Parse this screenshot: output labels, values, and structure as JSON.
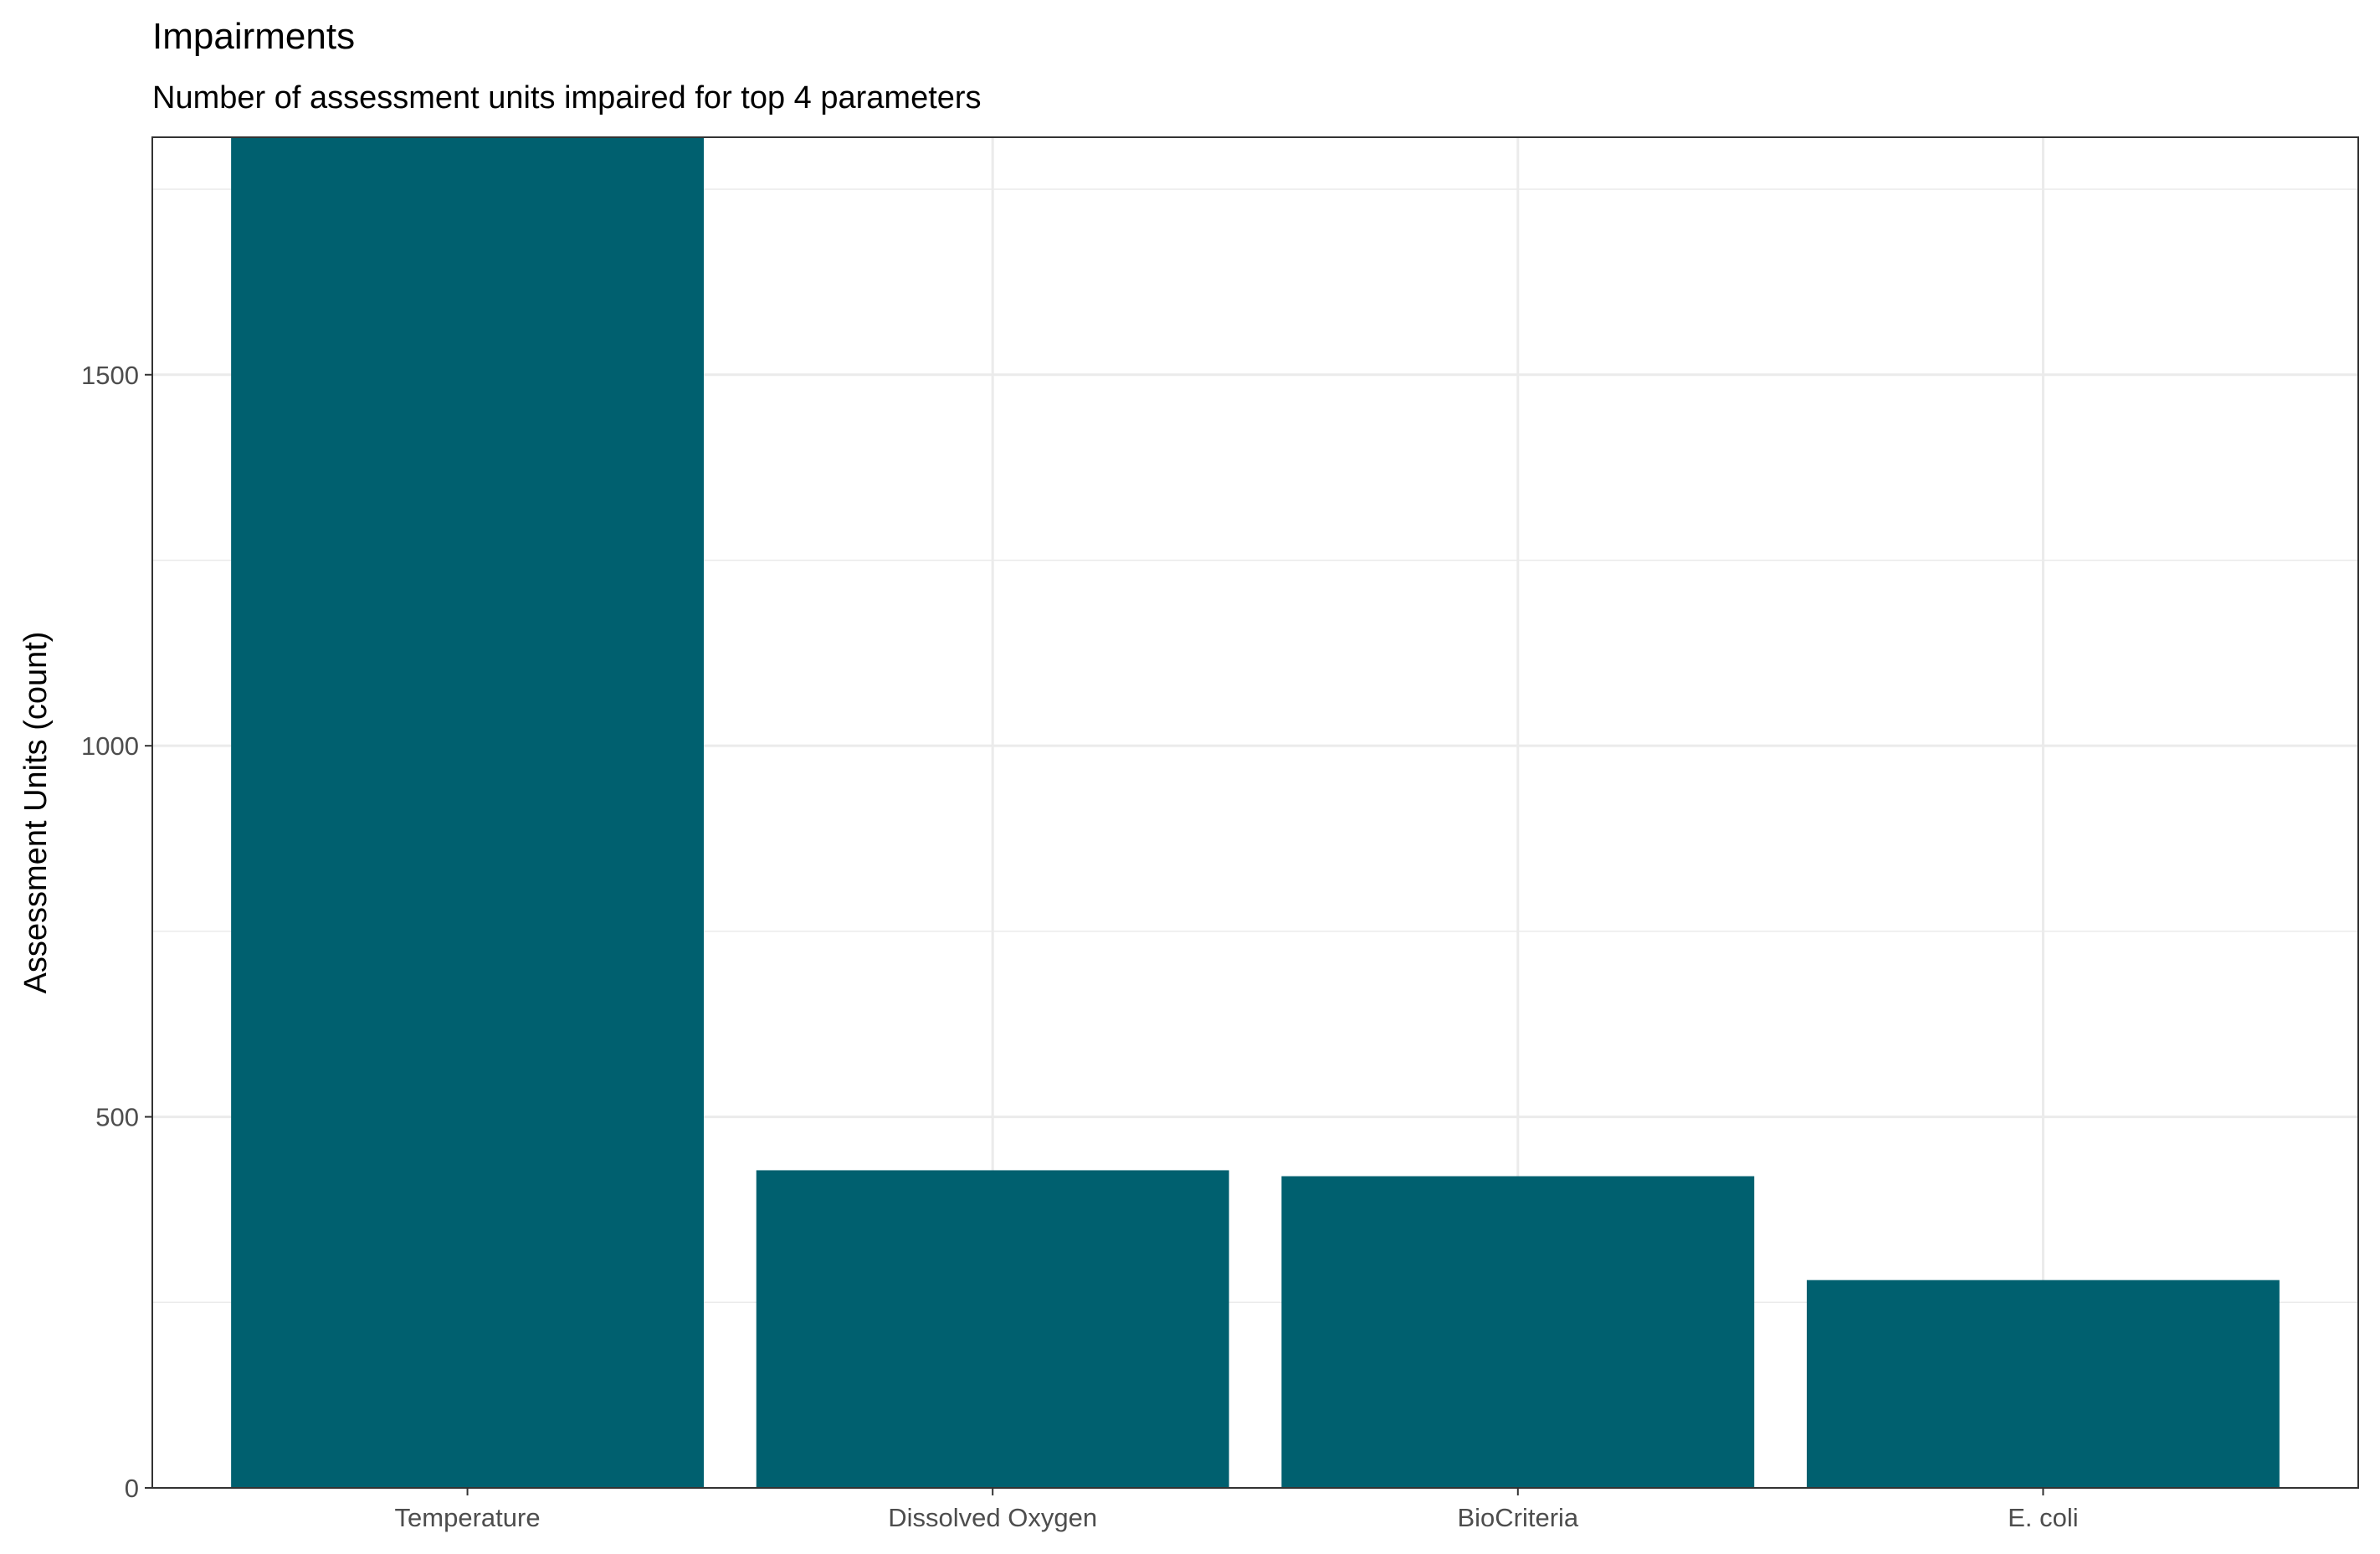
{
  "chart_data": {
    "type": "bar",
    "title": "Impairments",
    "subtitle": "Number of assessment units impaired for top 4 parameters",
    "xlabel": "",
    "ylabel": "Assessment Units (count)",
    "categories": [
      "Temperature",
      "Dissolved Oxygen",
      "BioCriteria",
      "E. coli"
    ],
    "values": [
      1820,
      428,
      420,
      280
    ],
    "ylim": [
      0,
      1820
    ],
    "yticks": [
      0,
      500,
      1000,
      1500
    ],
    "grid": true,
    "legend": "none",
    "colors": {
      "bar": "#00606f",
      "panel_border": "#333333",
      "grid": "#ebebeb",
      "tick_text": "#4d4d4d",
      "axis_tick": "#333333"
    }
  }
}
